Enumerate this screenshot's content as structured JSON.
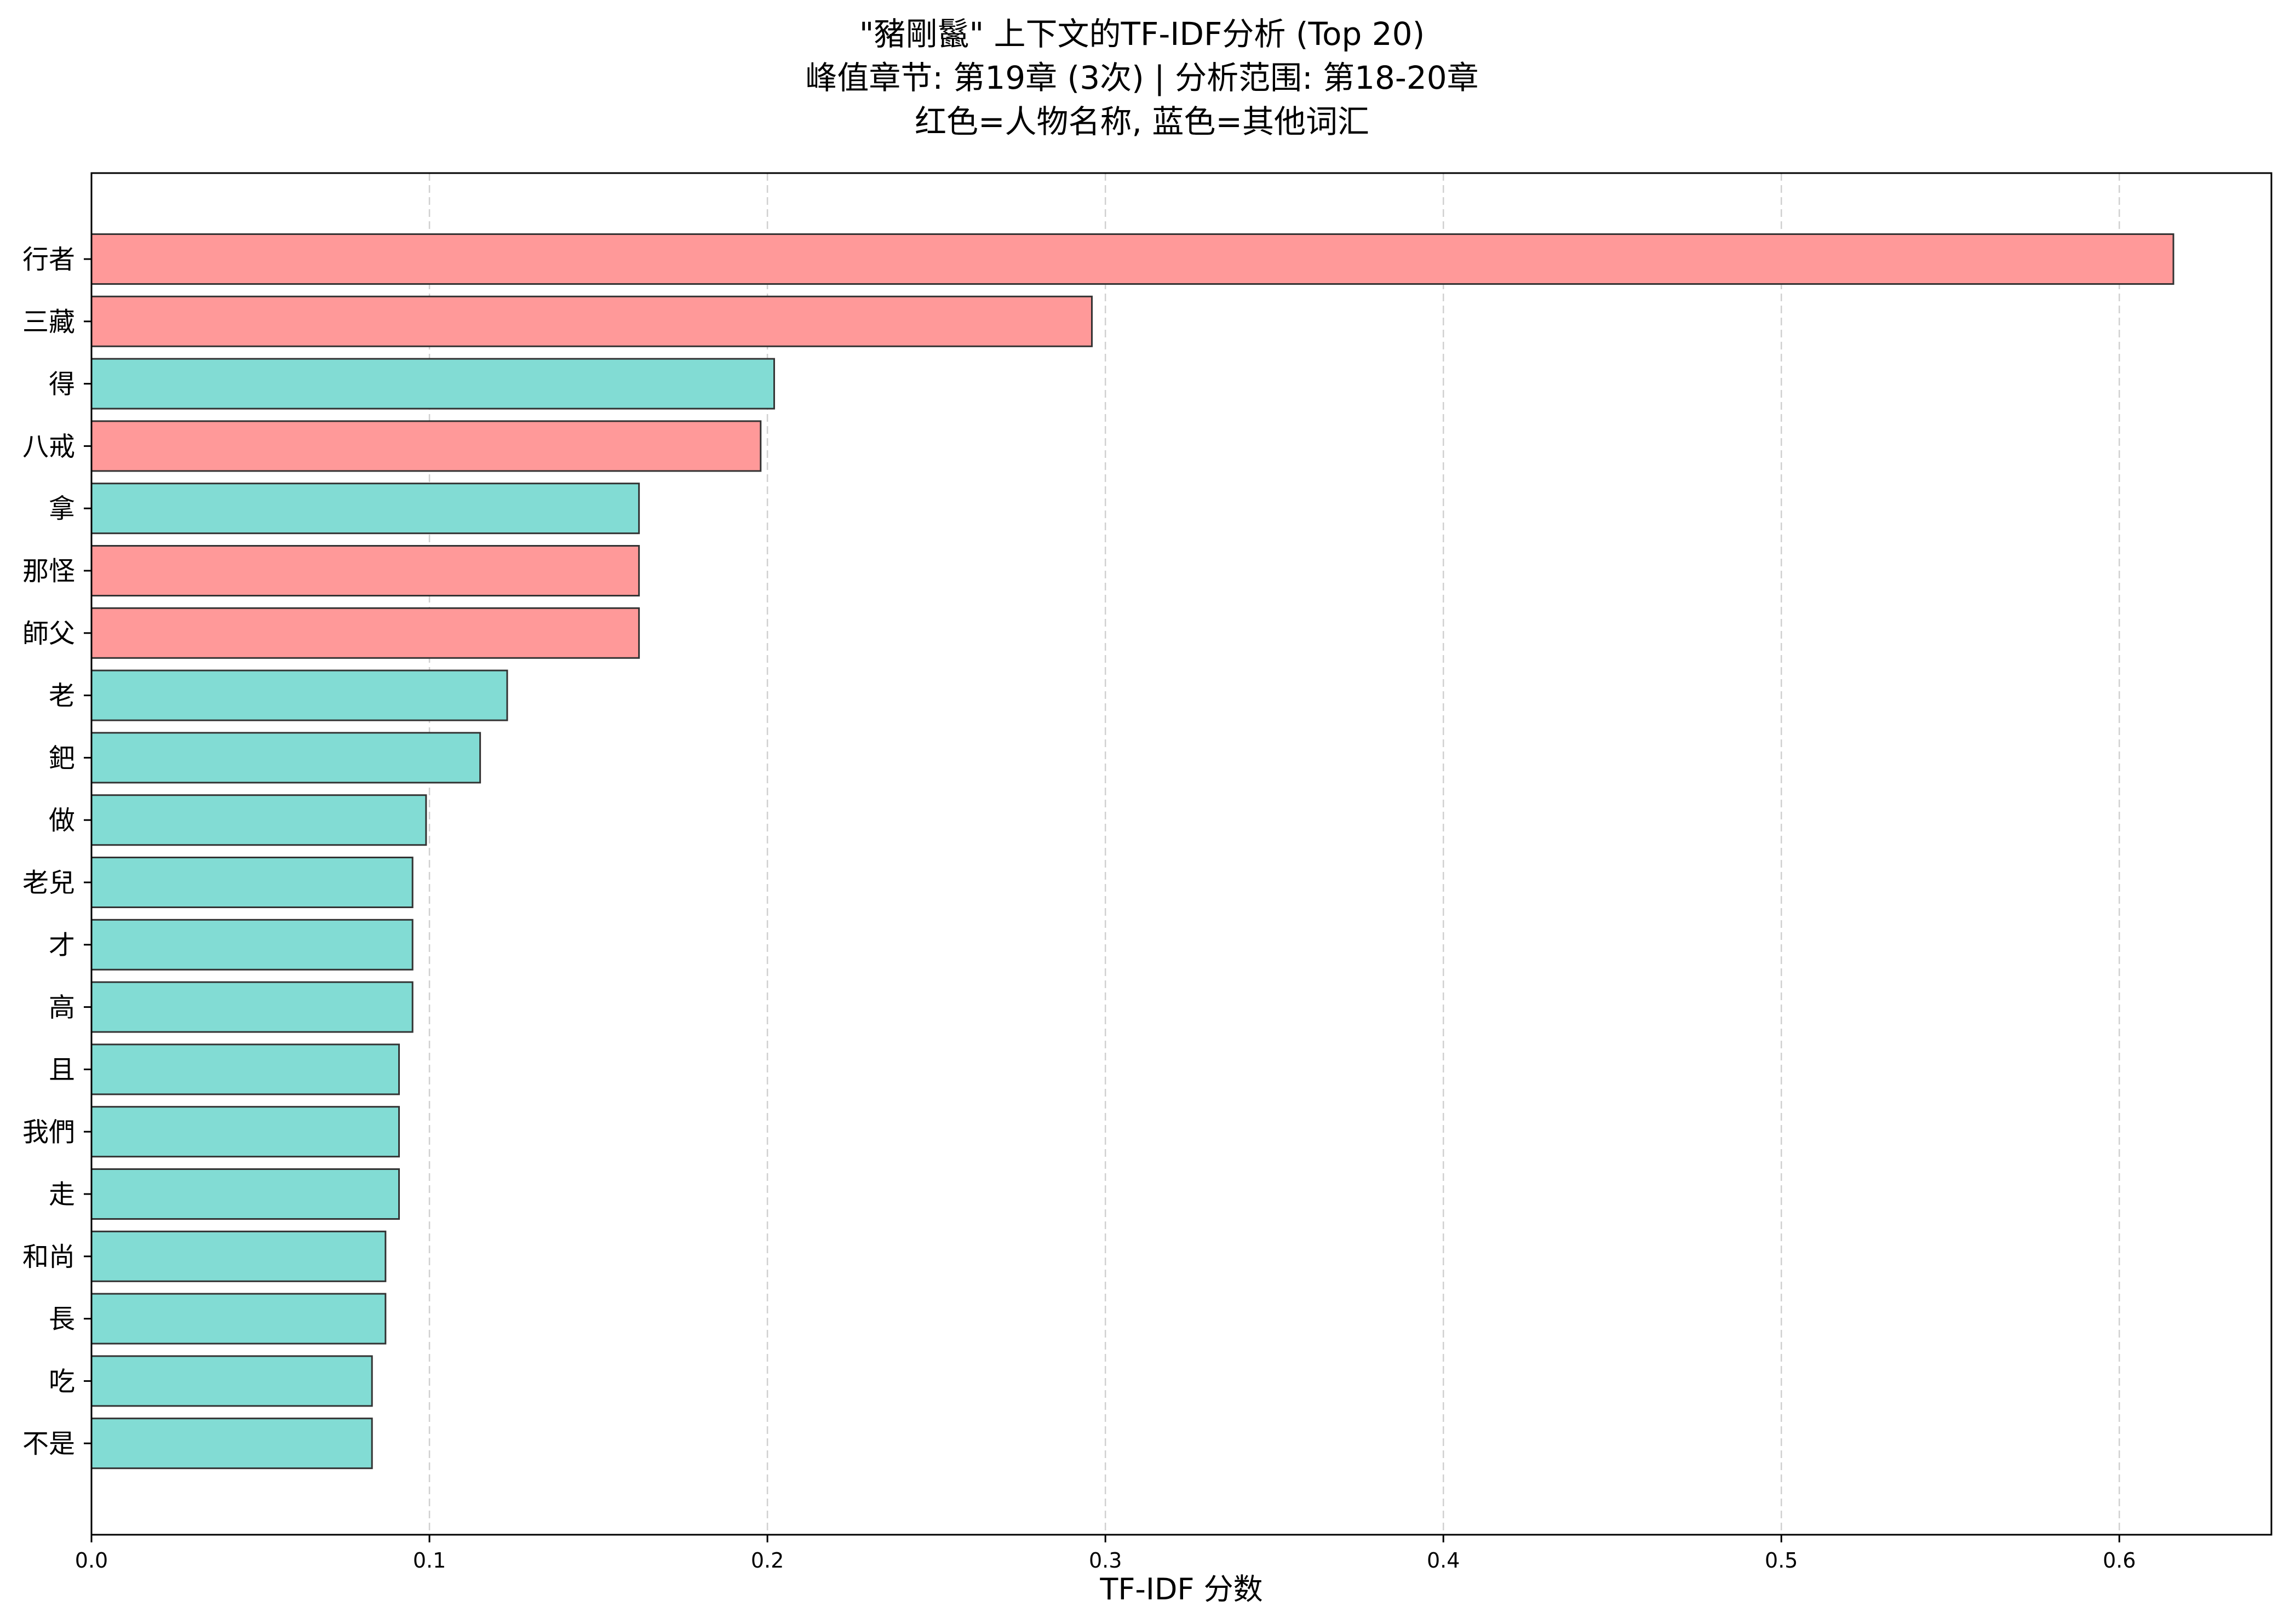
{
  "chart_data": {
    "type": "bar",
    "orientation": "horizontal",
    "title": "\"豬剛鬣\" 上下文的TF-IDF分析 (Top 20)",
    "subtitle": "峰值章节: 第19章 (3次) | 分析范围: 第18-20章",
    "note": "红色=人物名称, 蓝色=其他词汇",
    "xlabel": "TF-IDF 分数",
    "ylabel": "",
    "xlim": [
      0,
      0.645
    ],
    "xticks": [
      "0.0",
      "0.1",
      "0.2",
      "0.3",
      "0.4",
      "0.5",
      "0.6"
    ],
    "grid": "x-dashed",
    "colors": {
      "person": "#ff9999",
      "other": "#82dcd4",
      "edge": "#333333"
    },
    "categories": [
      "行者",
      "三藏",
      "得",
      "八戒",
      "拿",
      "那怪",
      "師父",
      "老",
      "鈀",
      "做",
      "老兒",
      "才",
      "高",
      "且",
      "我們",
      "走",
      "和尚",
      "長",
      "吃",
      "不是"
    ],
    "values": [
      0.616,
      0.296,
      0.202,
      0.198,
      0.162,
      0.162,
      0.162,
      0.123,
      0.115,
      0.099,
      0.095,
      0.095,
      0.095,
      0.091,
      0.091,
      0.091,
      0.087,
      0.087,
      0.083,
      0.083
    ],
    "group": [
      "person",
      "person",
      "other",
      "person",
      "other",
      "person",
      "person",
      "other",
      "other",
      "other",
      "other",
      "other",
      "other",
      "other",
      "other",
      "other",
      "other",
      "other",
      "other",
      "other"
    ]
  }
}
